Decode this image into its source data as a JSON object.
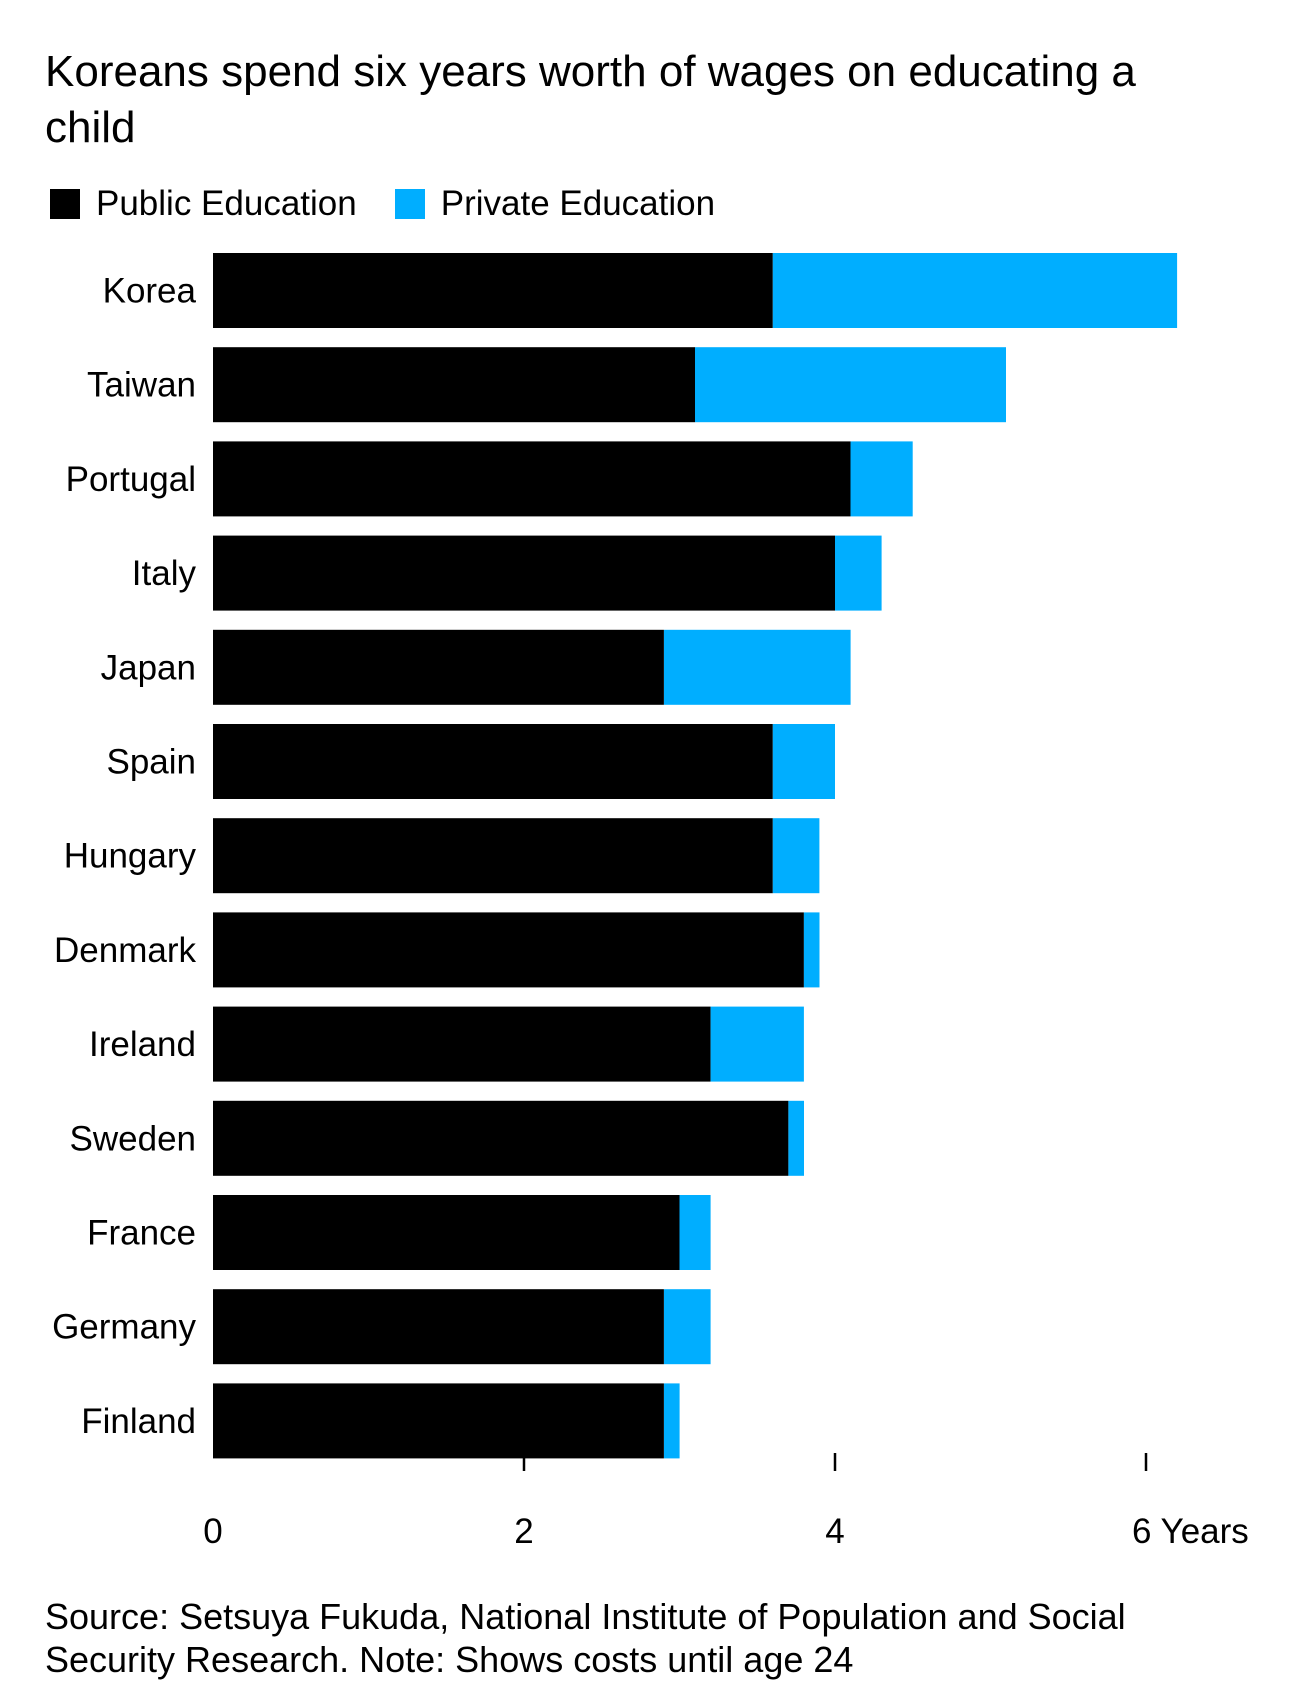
{
  "title": "Koreans spend six years worth of wages on educating a child",
  "legend": [
    {
      "label": "Public Education",
      "color": "#000000"
    },
    {
      "label": "Private Education",
      "color": "#00aeff"
    }
  ],
  "source": "Source: Setsuya Fukuda, National Institute of Population and Social Security Research. Note: Shows costs until age 24",
  "chart_data": {
    "type": "bar",
    "orientation": "horizontal",
    "stacked": true,
    "title": "Koreans spend six years worth of wages on educating a child",
    "categories": [
      "Korea",
      "Taiwan",
      "Portugal",
      "Italy",
      "Japan",
      "Spain",
      "Hungary",
      "Denmark",
      "Ireland",
      "Sweden",
      "France",
      "Germany",
      "Finland"
    ],
    "series": [
      {
        "name": "Public Education",
        "color": "#000000",
        "values": [
          3.6,
          3.1,
          4.1,
          4.0,
          2.9,
          3.6,
          3.6,
          3.8,
          3.2,
          3.7,
          3.0,
          2.9,
          2.9
        ]
      },
      {
        "name": "Private Education",
        "color": "#00aeff",
        "values": [
          2.6,
          2.0,
          0.4,
          0.3,
          1.2,
          0.4,
          0.3,
          0.1,
          0.6,
          0.1,
          0.2,
          0.3,
          0.1
        ]
      }
    ],
    "xlim": [
      0,
      6.2
    ],
    "xticks": [
      0,
      2,
      4,
      6
    ],
    "xtick_labels": [
      "0",
      "2",
      "4",
      "6 Years"
    ],
    "grid": false,
    "legend_position": "top-left"
  }
}
